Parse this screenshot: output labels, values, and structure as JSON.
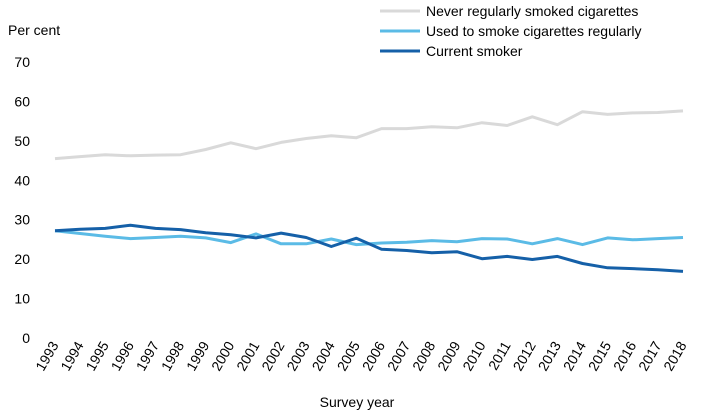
{
  "chart_data": {
    "type": "line",
    "ylabel": "Per cent",
    "xlabel": "Survey year",
    "ylim": [
      0,
      70
    ],
    "yticks": [
      "0",
      "10",
      "20",
      "30",
      "40",
      "50",
      "60",
      "70"
    ],
    "grid": false,
    "legend": "top-right",
    "x": [
      "1993",
      "1994",
      "1995",
      "1996",
      "1997",
      "1998",
      "1999",
      "2000",
      "2001",
      "2002",
      "2003",
      "2004",
      "2005",
      "2006",
      "2007",
      "2008",
      "2009",
      "2010",
      "2011",
      "2012",
      "2013",
      "2014",
      "2015",
      "2016",
      "2017",
      "2018"
    ],
    "series": [
      {
        "name": "Never regularly smoked cigarettes",
        "color": "#d9d9d9",
        "values": [
          45.5,
          46.0,
          46.5,
          46.2,
          46.4,
          46.5,
          47.8,
          49.5,
          48.0,
          49.6,
          50.6,
          51.3,
          50.8,
          53.1,
          53.1,
          53.6,
          53.3,
          54.6,
          53.9,
          56.1,
          54.1,
          57.4,
          56.7,
          57.1,
          57.2,
          57.6
        ]
      },
      {
        "name": "Used to smoke cigarettes regularly",
        "color": "#5bbbe6",
        "values": [
          27.2,
          26.5,
          25.8,
          25.2,
          25.5,
          25.8,
          25.4,
          24.2,
          26.4,
          23.9,
          23.9,
          25.1,
          23.7,
          24.1,
          24.3,
          24.7,
          24.4,
          25.2,
          25.1,
          23.9,
          25.2,
          23.7,
          25.4,
          24.9,
          25.2,
          25.5
        ]
      },
      {
        "name": "Current smoker",
        "color": "#1560a8",
        "values": [
          27.2,
          27.6,
          27.8,
          28.6,
          27.8,
          27.5,
          26.7,
          26.2,
          25.4,
          26.6,
          25.5,
          23.2,
          25.3,
          22.5,
          22.2,
          21.6,
          21.9,
          20.1,
          20.7,
          19.9,
          20.7,
          18.9,
          17.8,
          17.6,
          17.3,
          16.9
        ]
      }
    ]
  }
}
